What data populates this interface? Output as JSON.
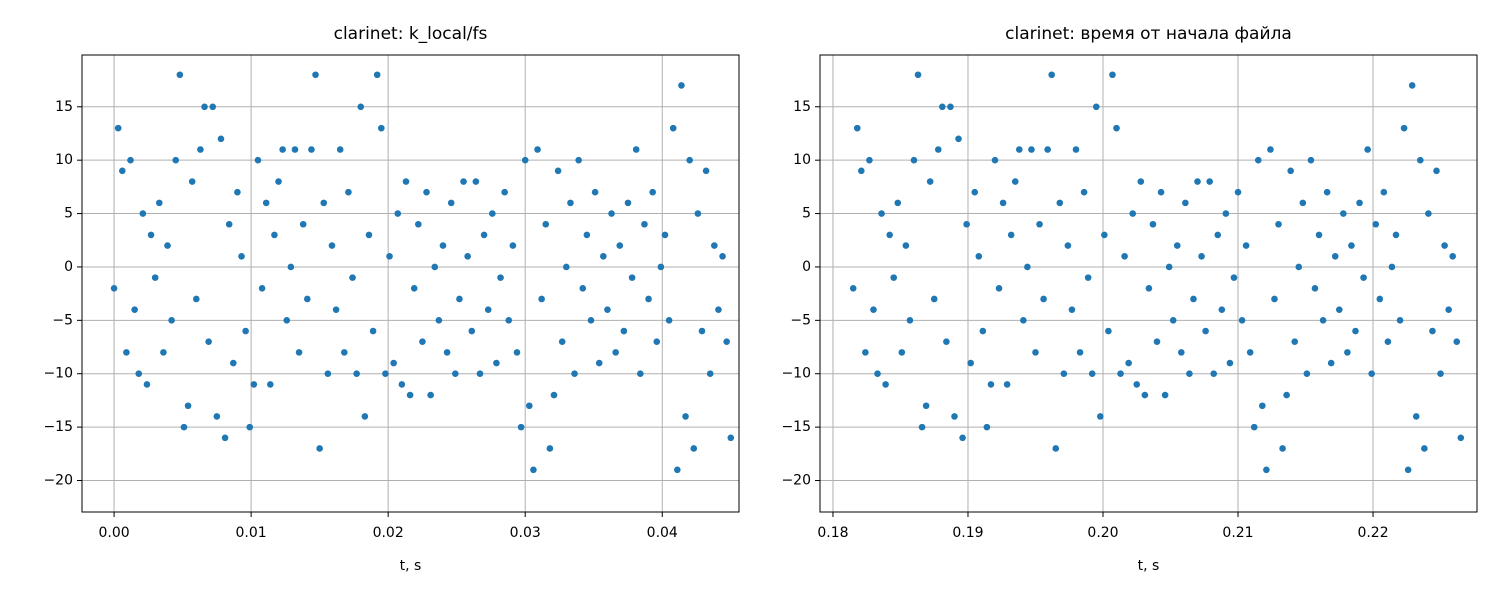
{
  "chart_data": [
    {
      "type": "scatter",
      "title": "clarinet: k_local/fs",
      "x_label": "t, s",
      "grid": true,
      "xlim": [
        -0.00234,
        0.0456
      ],
      "ylim": [
        -22.95,
        19.85
      ],
      "xticks": [
        {
          "value": 0,
          "label": "0.00"
        },
        0.01,
        0.02,
        0.03,
        0.04
      ],
      "yticks": [
        {
          "value": -20,
          "label": "−20"
        },
        {
          "value": -15,
          "label": "−15"
        },
        {
          "value": -10,
          "label": "−10"
        },
        {
          "value": -5,
          "label": "−5"
        },
        0,
        5,
        10,
        15
      ],
      "series": [
        {
          "color": "#1f77b4",
          "x": [
            0.0,
            0.0003,
            0.0006,
            0.0009,
            0.0012,
            0.0015,
            0.0018,
            0.0021,
            0.0024,
            0.0027,
            0.003,
            0.0033,
            0.0036,
            0.0039,
            0.0042,
            0.0045,
            0.0048,
            0.0051,
            0.0054,
            0.0057,
            0.006,
            0.0063,
            0.0066,
            0.0069,
            0.0072,
            0.0075,
            0.0078,
            0.0081,
            0.0084,
            0.0087,
            0.009,
            0.0093,
            0.0096,
            0.0099,
            0.0102,
            0.0105,
            0.0108,
            0.0111,
            0.0114,
            0.0117,
            0.012,
            0.0123,
            0.0126,
            0.0129,
            0.0132,
            0.0135,
            0.0138,
            0.0141,
            0.0144,
            0.0147,
            0.015,
            0.0153,
            0.0156,
            0.0159,
            0.0162,
            0.0165,
            0.0168,
            0.0171,
            0.0174,
            0.0177,
            0.018,
            0.0183,
            0.0186,
            0.0189,
            0.0192,
            0.0195,
            0.0198,
            0.0201,
            0.0204,
            0.0207,
            0.021,
            0.0213,
            0.0216,
            0.0219,
            0.0222,
            0.0225,
            0.0228,
            0.0231,
            0.0234,
            0.0237,
            0.024,
            0.0243,
            0.0246,
            0.0249,
            0.0252,
            0.0255,
            0.0258,
            0.0261,
            0.0264,
            0.0267,
            0.027,
            0.0273,
            0.0276,
            0.0279,
            0.0282,
            0.0285,
            0.0288,
            0.0291,
            0.0294,
            0.0297,
            0.03,
            0.0303,
            0.0306,
            0.0309,
            0.0312,
            0.0315,
            0.0318,
            0.0321,
            0.0324,
            0.0327,
            0.033,
            0.0333,
            0.0336,
            0.0339,
            0.0342,
            0.0345,
            0.0348,
            0.0351,
            0.0354,
            0.0357,
            0.036,
            0.0363,
            0.0366,
            0.0369,
            0.0372,
            0.0375,
            0.0378,
            0.0381,
            0.0384,
            0.0387,
            0.039,
            0.0393,
            0.0396,
            0.0399,
            0.0402,
            0.0405,
            0.0408,
            0.0411,
            0.0414,
            0.0417,
            0.042,
            0.0423,
            0.0426,
            0.0429,
            0.0432,
            0.0435,
            0.0438,
            0.0441,
            0.0444,
            0.0447,
            0.045
          ],
          "values": [
            -2,
            13,
            9,
            -8,
            10,
            -4,
            -10,
            5,
            -11,
            3,
            -1,
            6,
            -8,
            2,
            -5,
            10,
            18,
            -15,
            -13,
            8,
            -3,
            11,
            15,
            -7,
            15,
            -14,
            12,
            -16,
            4,
            -9,
            7,
            1,
            -6,
            -15,
            -11,
            10,
            -2,
            6,
            -11,
            3,
            8,
            11,
            -5,
            0,
            11,
            -8,
            4,
            -3,
            11,
            18,
            -17,
            6,
            -10,
            2,
            -4,
            11,
            -8,
            7,
            -1,
            -10,
            15,
            -14,
            3,
            -6,
            18,
            13,
            -10,
            1,
            -9,
            5,
            -11,
            8,
            -12,
            -2,
            4,
            -7,
            7,
            -12,
            0,
            -5,
            2,
            -8,
            6,
            -10,
            -3,
            8,
            1,
            -6,
            8,
            -10,
            3,
            -4,
            5,
            -9,
            -1,
            7,
            -5,
            2,
            -8,
            -15,
            10,
            -13,
            -19,
            11,
            -3,
            4,
            -17,
            -12,
            9,
            -7,
            0,
            6,
            -10,
            10,
            -2,
            3,
            -5,
            7,
            -9,
            1,
            -4,
            5,
            -8,
            2,
            -6,
            6,
            -1,
            11,
            -10,
            4,
            -3,
            7,
            -7,
            0,
            3,
            -5,
            13,
            -19,
            17,
            -14,
            10,
            -17,
            5,
            -6,
            9,
            -10,
            2,
            -4,
            1,
            -7,
            -16
          ]
        }
      ]
    },
    {
      "type": "scatter",
      "title": "clarinet: время от начала файла",
      "x_label": "t, s",
      "grid": true,
      "xlim": [
        0.17904,
        0.2277
      ],
      "ylim": [
        -22.95,
        19.85
      ],
      "xticks": [
        0.18,
        0.19,
        {
          "value": 0.2,
          "label": "0.20"
        },
        0.21,
        0.22
      ],
      "yticks": [
        {
          "value": -20,
          "label": "−20"
        },
        {
          "value": -15,
          "label": "−15"
        },
        {
          "value": -10,
          "label": "−10"
        },
        {
          "value": -5,
          "label": "−5"
        },
        0,
        5,
        10,
        15
      ],
      "series": [
        {
          "color": "#1f77b4",
          "x": [
            0.1815,
            0.1818,
            0.1821,
            0.1824,
            0.1827,
            0.183,
            0.1833,
            0.1836,
            0.1839,
            0.1842,
            0.1845,
            0.1848,
            0.1851,
            0.1854,
            0.1857,
            0.186,
            0.1863,
            0.1866,
            0.1869,
            0.1872,
            0.1875,
            0.1878,
            0.1881,
            0.1884,
            0.1887,
            0.189,
            0.1893,
            0.1896,
            0.1899,
            0.1902,
            0.1905,
            0.1908,
            0.1911,
            0.1914,
            0.1917,
            0.192,
            0.1923,
            0.1926,
            0.1929,
            0.1932,
            0.1935,
            0.1938,
            0.1941,
            0.1944,
            0.1947,
            0.195,
            0.1953,
            0.1956,
            0.1959,
            0.1962,
            0.1965,
            0.1968,
            0.1971,
            0.1974,
            0.1977,
            0.198,
            0.1983,
            0.1986,
            0.1989,
            0.1992,
            0.1995,
            0.1998,
            0.2001,
            0.2004,
            0.2007,
            0.201,
            0.2013,
            0.2016,
            0.2019,
            0.2022,
            0.2025,
            0.2028,
            0.2031,
            0.2034,
            0.2037,
            0.204,
            0.2043,
            0.2046,
            0.2049,
            0.2052,
            0.2055,
            0.2058,
            0.2061,
            0.2064,
            0.2067,
            0.207,
            0.2073,
            0.2076,
            0.2079,
            0.2082,
            0.2085,
            0.2088,
            0.2091,
            0.2094,
            0.2097,
            0.21,
            0.2103,
            0.2106,
            0.2109,
            0.2112,
            0.2115,
            0.2118,
            0.2121,
            0.2124,
            0.2127,
            0.213,
            0.2133,
            0.2136,
            0.2139,
            0.2142,
            0.2145,
            0.2148,
            0.2151,
            0.2154,
            0.2157,
            0.216,
            0.2163,
            0.2166,
            0.2169,
            0.2172,
            0.2175,
            0.2178,
            0.2181,
            0.2184,
            0.2187,
            0.219,
            0.2193,
            0.2196,
            0.2199,
            0.2202,
            0.2205,
            0.2208,
            0.2211,
            0.2214,
            0.2217,
            0.222,
            0.2223,
            0.2226,
            0.2229,
            0.2232,
            0.2235,
            0.2238,
            0.2241,
            0.2244,
            0.2247,
            0.225,
            0.2253,
            0.2256,
            0.2259,
            0.2262,
            0.2265
          ],
          "values": [
            -2,
            13,
            9,
            -8,
            10,
            -4,
            -10,
            5,
            -11,
            3,
            -1,
            6,
            -8,
            2,
            -5,
            10,
            18,
            -15,
            -13,
            8,
            -3,
            11,
            15,
            -7,
            15,
            -14,
            12,
            -16,
            4,
            -9,
            7,
            1,
            -6,
            -15,
            -11,
            10,
            -2,
            6,
            -11,
            3,
            8,
            11,
            -5,
            0,
            11,
            -8,
            4,
            -3,
            11,
            18,
            -17,
            6,
            -10,
            2,
            -4,
            11,
            -8,
            7,
            -1,
            -10,
            15,
            -14,
            3,
            -6,
            18,
            13,
            -10,
            1,
            -9,
            5,
            -11,
            8,
            -12,
            -2,
            4,
            -7,
            7,
            -12,
            0,
            -5,
            2,
            -8,
            6,
            -10,
            -3,
            8,
            1,
            -6,
            8,
            -10,
            3,
            -4,
            5,
            -9,
            -1,
            7,
            -5,
            2,
            -8,
            -15,
            10,
            -13,
            -19,
            11,
            -3,
            4,
            -17,
            -12,
            9,
            -7,
            0,
            6,
            -10,
            10,
            -2,
            3,
            -5,
            7,
            -9,
            1,
            -4,
            5,
            -8,
            2,
            -6,
            6,
            -1,
            11,
            -10,
            4,
            -3,
            7,
            -7,
            0,
            3,
            -5,
            13,
            -19,
            17,
            -14,
            10,
            -17,
            5,
            -6,
            9,
            -10,
            2,
            -4,
            1,
            -7,
            -16
          ]
        }
      ]
    }
  ]
}
